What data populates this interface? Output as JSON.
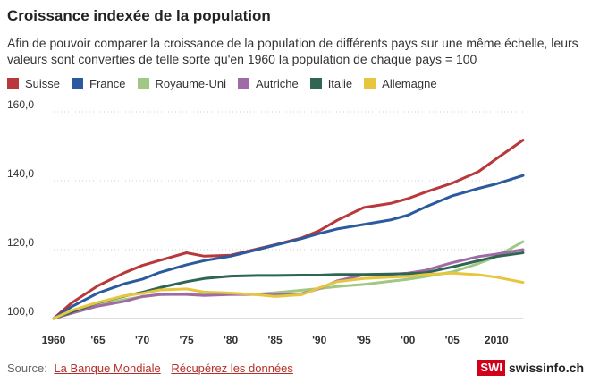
{
  "chart_data": {
    "type": "line",
    "title": "Croissance indexée de la population",
    "subtitle": "Afin de pouvoir comparer la croissance de la population de différents pays sur une même échelle, leurs valeurs sont converties de telle sorte qu'en 1960 la population de chaque pays = 100",
    "xlabel": "",
    "ylabel": "",
    "xlim": [
      1960,
      2013
    ],
    "ylim": [
      100,
      160
    ],
    "y_ticks": [
      100,
      120,
      140,
      160
    ],
    "y_tick_labels": [
      "100,0",
      "120,0",
      "140,0",
      "160,0"
    ],
    "x_ticks": [
      1960,
      1965,
      1970,
      1975,
      1980,
      1985,
      1990,
      1995,
      2000,
      2005,
      2010
    ],
    "x_tick_labels": [
      "1960",
      "'65",
      "'70",
      "'75",
      "'80",
      "'85",
      "'90",
      "'95",
      "'00",
      "'05",
      "2010"
    ],
    "grid": true,
    "legend_position": "top",
    "x": [
      1960,
      1962,
      1965,
      1968,
      1970,
      1972,
      1975,
      1977,
      1980,
      1983,
      1985,
      1988,
      1990,
      1992,
      1995,
      1998,
      2000,
      2002,
      2005,
      2008,
      2010,
      2013
    ],
    "series": [
      {
        "name": "Suisse",
        "color": "#b8383b",
        "values": [
          100,
          104.5,
          109.5,
          113.3,
          115.4,
          116.9,
          119.1,
          118.1,
          118.4,
          120.2,
          121.4,
          123.4,
          125.5,
          128.5,
          132.2,
          133.4,
          134.8,
          136.7,
          139.3,
          142.7,
          146.4,
          151.8
        ]
      },
      {
        "name": "France",
        "color": "#2b5a9e",
        "values": [
          100,
          103.4,
          107.4,
          110.1,
          111.4,
          113.4,
          115.6,
          116.8,
          118.1,
          120.0,
          121.3,
          123.2,
          124.7,
          126.0,
          127.3,
          128.6,
          130.0,
          132.4,
          135.6,
          137.8,
          139.1,
          141.5
        ]
      },
      {
        "name": "Royaume-Uni",
        "color": "#a0c884",
        "values": [
          100,
          101.8,
          104.0,
          105.5,
          106.3,
          106.9,
          107.2,
          107.1,
          107.0,
          107.1,
          107.5,
          108.2,
          108.7,
          109.3,
          109.9,
          110.8,
          111.4,
          112.2,
          113.5,
          116.0,
          118.0,
          122.3
        ]
      },
      {
        "name": "Autriche",
        "color": "#a06aa6",
        "values": [
          100,
          101.5,
          103.6,
          105.0,
          106.4,
          107.0,
          107.0,
          106.7,
          107.0,
          107.0,
          106.8,
          107.2,
          108.7,
          110.9,
          112.7,
          112.8,
          113.2,
          114.0,
          116.2,
          118.0,
          118.7,
          120.0
        ]
      },
      {
        "name": "Italie",
        "color": "#2e6553",
        "values": [
          100,
          101.9,
          104.6,
          106.5,
          107.6,
          109.0,
          110.7,
          111.6,
          112.3,
          112.5,
          112.5,
          112.6,
          112.6,
          112.8,
          112.8,
          112.9,
          113.0,
          113.3,
          115.0,
          116.8,
          118.0,
          119.1
        ]
      },
      {
        "name": "Allemagne",
        "color": "#e6c63f",
        "values": [
          100,
          102.3,
          104.7,
          106.6,
          107.3,
          108.3,
          108.6,
          107.7,
          107.4,
          106.9,
          106.4,
          106.9,
          108.9,
          110.7,
          111.6,
          112.0,
          112.2,
          112.8,
          113.2,
          112.7,
          112.0,
          110.5
        ]
      }
    ]
  },
  "footer": {
    "source_label": "Source:",
    "source_link": "La Banque Mondiale",
    "data_link": "Récupérez les données"
  },
  "brand": {
    "badge": "SWI",
    "domain": "swissinfo.ch",
    "color": "#d0021b"
  }
}
